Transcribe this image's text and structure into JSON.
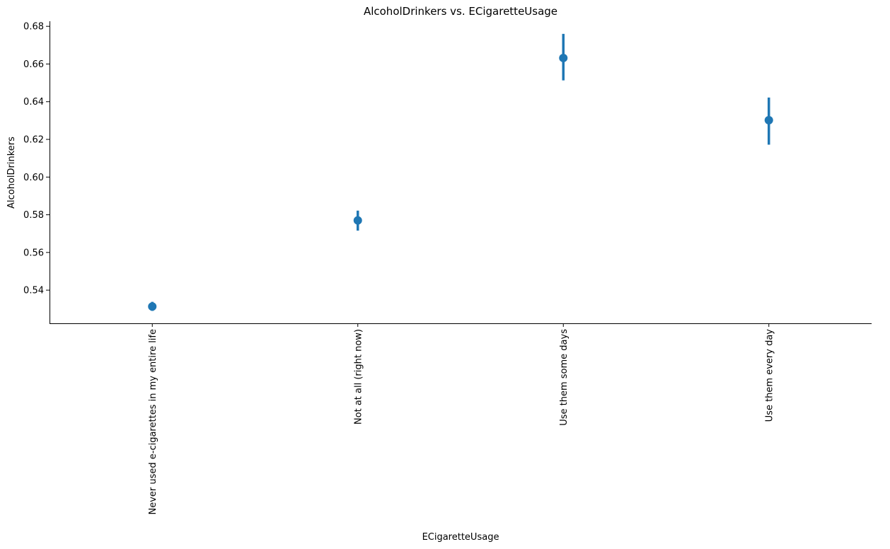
{
  "chart_data": {
    "type": "scatter",
    "title": "AlcoholDrinkers vs. ECigaretteUsage",
    "xlabel": "ECigaretteUsage",
    "ylabel": "AlcoholDrinkers",
    "categories": [
      "Never used e-cigarettes in my entire life",
      "Not at all (right now)",
      "Use them some days",
      "Use them every day"
    ],
    "values": [
      0.5313,
      0.577,
      0.6632,
      0.6302
    ],
    "ci_low": [
      0.529,
      0.5716,
      0.6513,
      0.6172
    ],
    "ci_high": [
      0.5338,
      0.5822,
      0.676,
      0.6422
    ],
    "ylim": [
      0.5224,
      0.6827
    ],
    "yticks": [
      0.54,
      0.56,
      0.58,
      0.6,
      0.62,
      0.64,
      0.66,
      0.68
    ],
    "ytick_labels": [
      "0.54",
      "0.56",
      "0.58",
      "0.60",
      "0.62",
      "0.64",
      "0.66",
      "0.68"
    ],
    "grid": false,
    "color": "#1f77b4"
  }
}
